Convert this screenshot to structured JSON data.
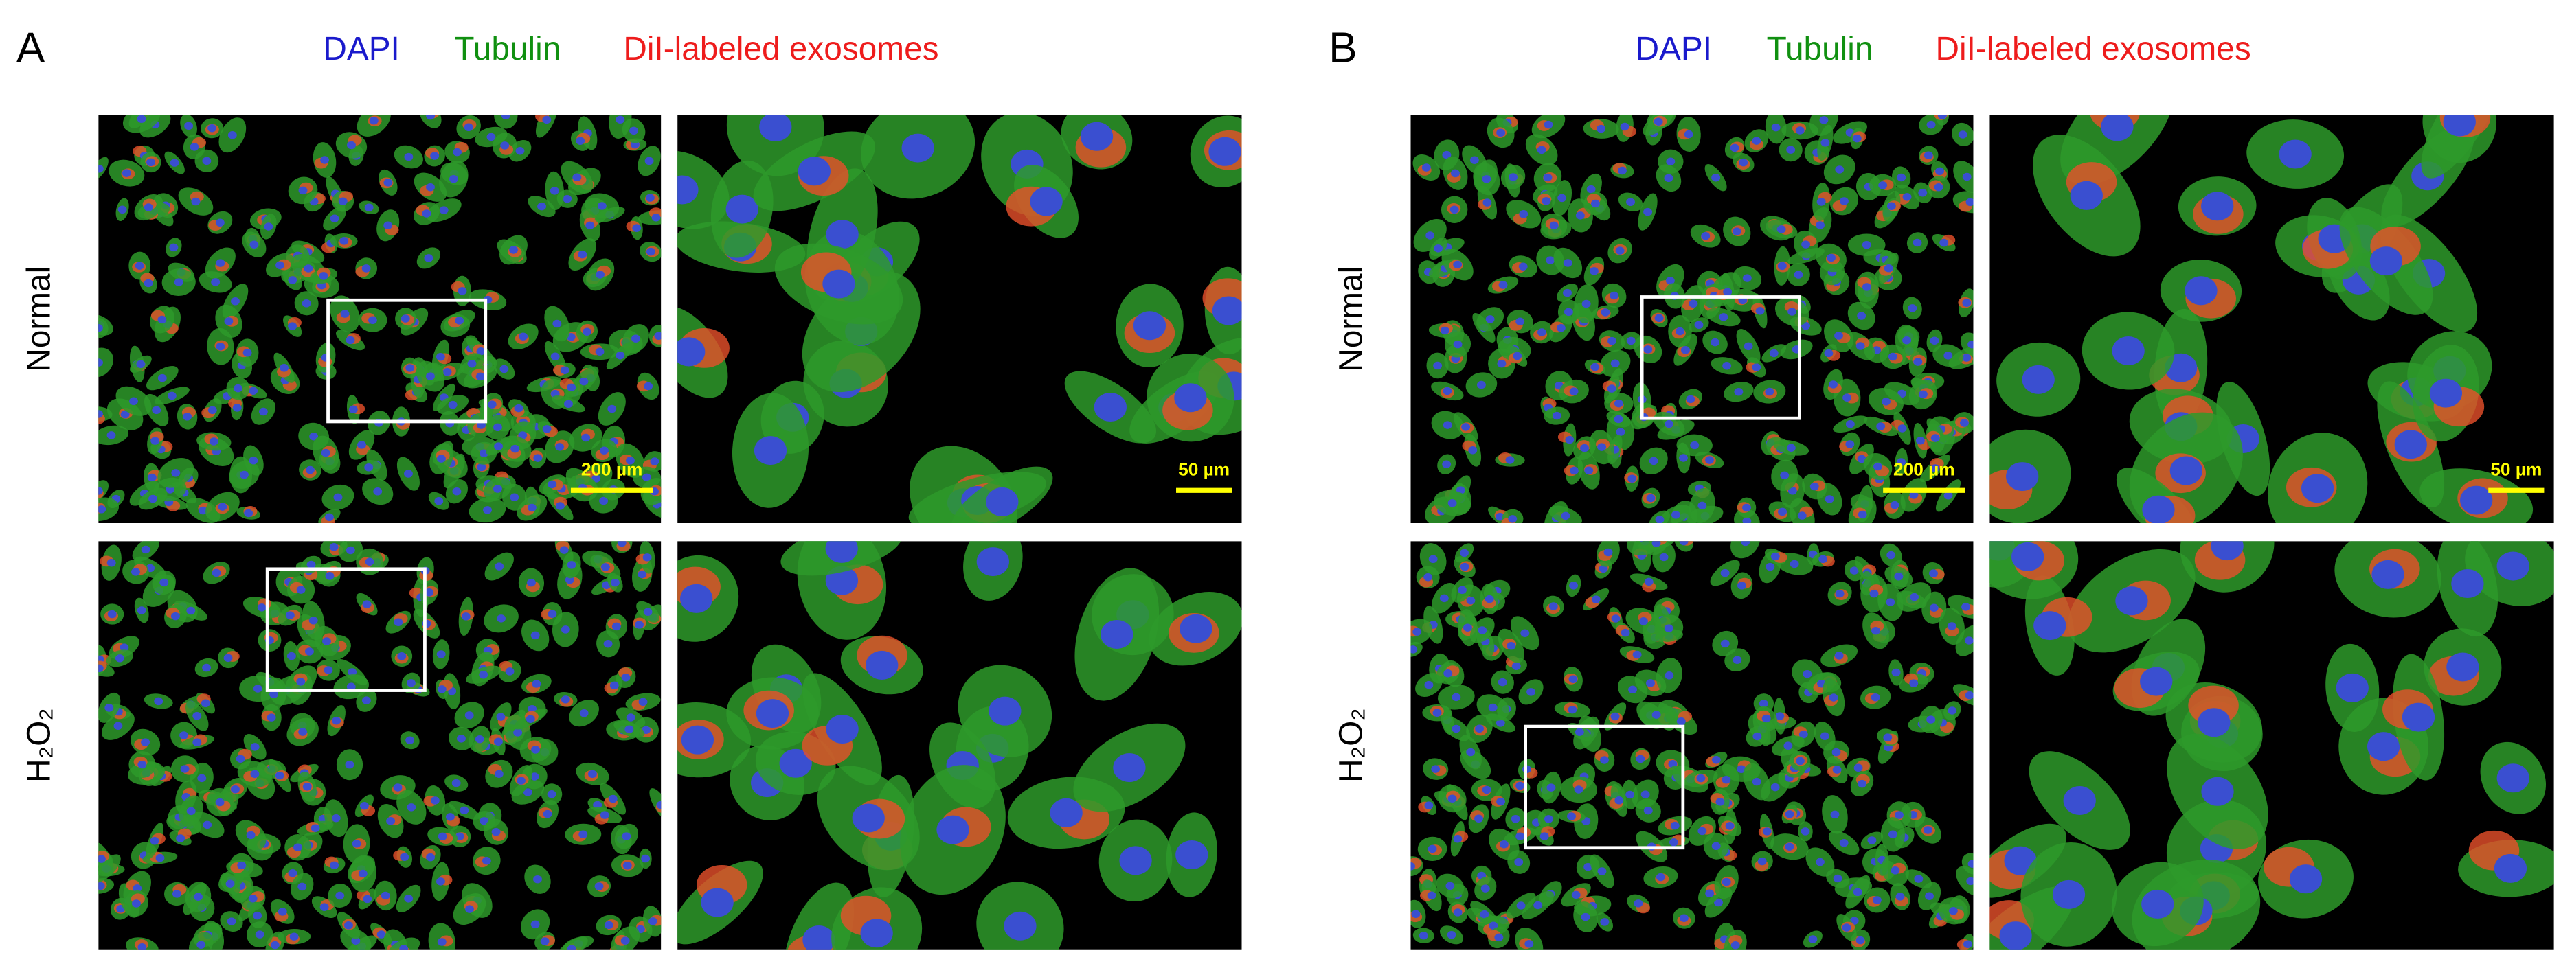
{
  "panels": [
    {
      "label": "A",
      "legend": [
        "DAPI",
        "Tubulin",
        "DiI-labeled exosomes"
      ],
      "rows": [
        {
          "label": "Normal",
          "overview_scale": "200 µm",
          "zoom_scale": "50 µm"
        },
        {
          "label": "H₂O₂"
        }
      ]
    },
    {
      "label": "B",
      "legend": [
        "DAPI",
        "Tubulin",
        "DiI-labeled exosomes"
      ],
      "rows": [
        {
          "label": "Normal",
          "overview_scale": "200 µm",
          "zoom_scale": "50 µm"
        },
        {
          "label": "H₂O₂"
        }
      ]
    }
  ]
}
